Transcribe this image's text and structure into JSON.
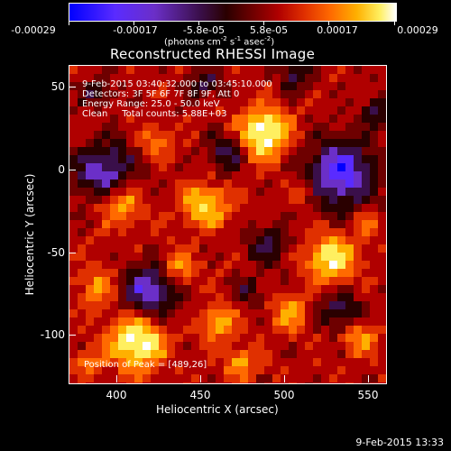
{
  "colorbar": {
    "ticks": [
      "-0.00029",
      "-0.00017",
      "-5.8e-05",
      "5.8e-05",
      "0.00017",
      "0.00029"
    ],
    "units_prefix": "(photons cm",
    "units_exp1": "-2",
    "units_mid": " s",
    "units_exp2": "-1",
    "units_mid2": " asec",
    "units_exp3": "-2",
    "units_suffix": ")"
  },
  "title": "Reconstructed RHESSI Image",
  "annotations": {
    "time_range": "9-Feb-2015 03:40:32.000 to 03:45:10.000",
    "detectors": "Detectors: 3F 5F 6F 7F 8F 9F, Att 0",
    "energy": "Energy Range: 25.0 - 50.0 keV",
    "clean": "Clean     Total counts: 5.88E+03",
    "peak": "Position of Peak = [489,26]"
  },
  "axes": {
    "xlabel": "Heliocentric X (arcsec)",
    "ylabel": "Heliocentric Y (arcsec)",
    "xticks": [
      "400",
      "450",
      "500",
      "550"
    ],
    "yticks": [
      "50",
      "0",
      "-50",
      "-100"
    ]
  },
  "footer_timestamp": "9-Feb-2015 13:33",
  "colormap": [
    "#0000ff",
    "#5a2bff",
    "#6b2fc8",
    "#3a0f4a",
    "#2a0000",
    "#6e0000",
    "#b00000",
    "#e03000",
    "#ff6a00",
    "#ffb000",
    "#ffef60",
    "#ffffff"
  ]
}
